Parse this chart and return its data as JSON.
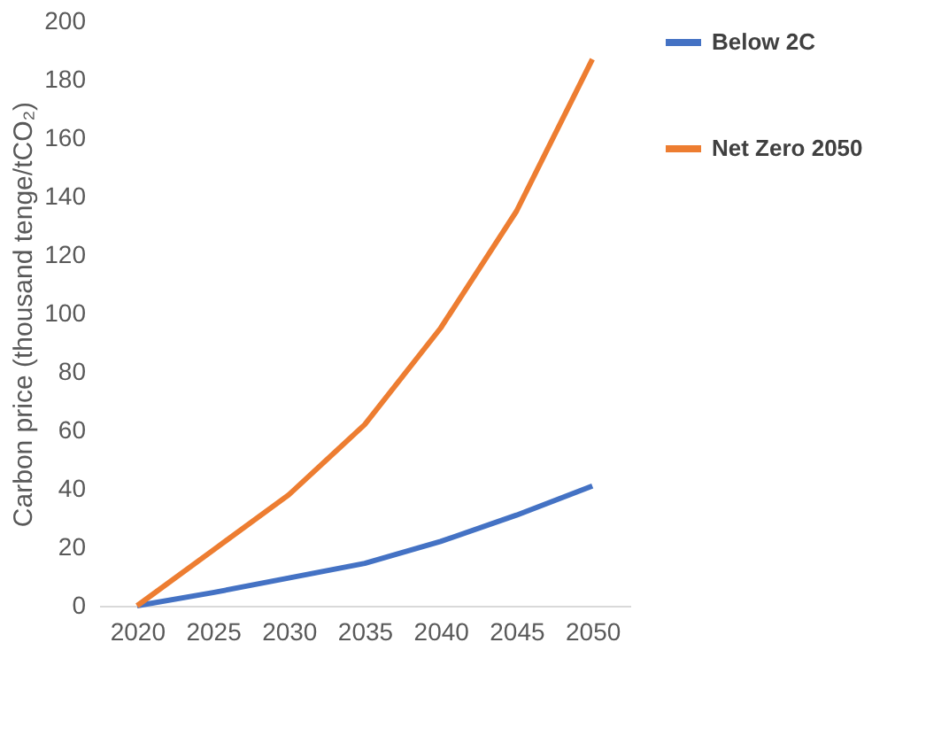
{
  "chart_data": {
    "type": "line",
    "ylabel": "Carbon price (thousand tenge/tCO₂)",
    "categories": [
      "2020",
      "2025",
      "2030",
      "2035",
      "2040",
      "2045",
      "2050"
    ],
    "series": [
      {
        "name": "Below 2C",
        "color": "#4472c4",
        "values": [
          0,
          4.5,
          9.5,
          14.5,
          22,
          31,
          41
        ]
      },
      {
        "name": "Net Zero 2050",
        "color": "#ed7d31",
        "values": [
          0,
          19,
          38,
          62,
          95,
          135,
          187
        ]
      }
    ],
    "ylim": [
      0,
      200
    ],
    "yticks": [
      0,
      20,
      40,
      60,
      80,
      100,
      120,
      140,
      160,
      180,
      200
    ],
    "grid": false,
    "legend": "right",
    "marker": "none",
    "line_style": "solid"
  }
}
